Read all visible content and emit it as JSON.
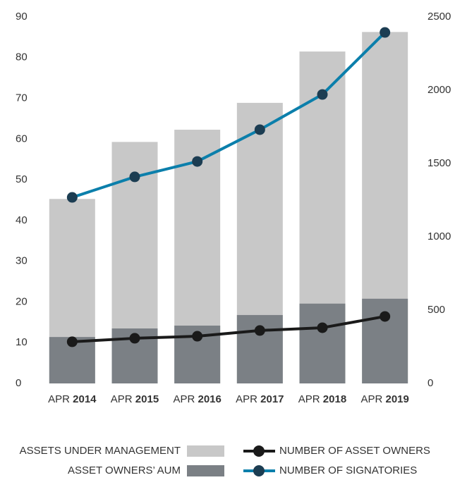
{
  "chart_data": {
    "type": "bar-line",
    "categories": [
      "APR 2014",
      "APR 2015",
      "APR 2016",
      "APR 2017",
      "APR 2018",
      "APR 2019"
    ],
    "series": [
      {
        "name": "ASSETS UNDER MANAGEMENT",
        "type": "bar",
        "color": "#c8c8c8",
        "axis": "y",
        "values": [
          45.3,
          59.3,
          62.3,
          68.9,
          81.5,
          86.3
        ]
      },
      {
        "name": "ASSET OWNERS’ AUM",
        "type": "bar",
        "color": "#7b8085",
        "axis": "y",
        "values": [
          11.4,
          13.5,
          14.2,
          16.8,
          19.6,
          20.8
        ]
      },
      {
        "name": "NUMBER OF ASSET OWNERS",
        "type": "line",
        "color": "#1a1a1a",
        "marker_color": "#1a1a1a",
        "axis": "y2",
        "values": [
          284,
          308,
          322,
          361,
          380,
          457
        ]
      },
      {
        "name": "NUMBER OF SIGNATORIES",
        "type": "line",
        "color": "#0b7fab",
        "marker_color": "#1c3d52",
        "axis": "y2",
        "values": [
          1269,
          1409,
          1514,
          1731,
          1971,
          2394
        ]
      }
    ],
    "ylim": [
      0,
      90
    ],
    "yticks": [
      0,
      10,
      20,
      30,
      40,
      50,
      60,
      70,
      80,
      90
    ],
    "y2lim": [
      0,
      2500
    ],
    "y2ticks": [
      0,
      500,
      1000,
      1500,
      2000,
      2500
    ],
    "legend": "bottom"
  }
}
